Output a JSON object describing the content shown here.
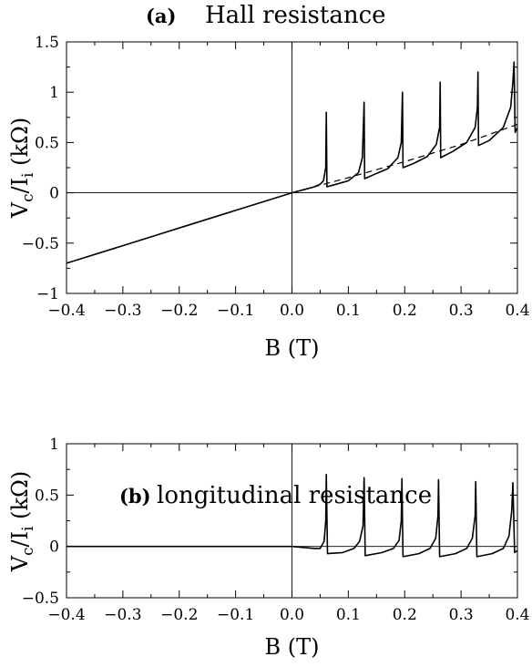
{
  "chart_data": [
    {
      "type": "line",
      "panel_label": "(a)",
      "title": "Hall resistance",
      "xlabel": "B (T)",
      "ylabel_main": "V",
      "ylabel_sub1": "c",
      "ylabel_mid": "/I",
      "ylabel_sub2": "i",
      "ylabel_unit": " (kΩ)",
      "xlim": [
        -0.4,
        0.4
      ],
      "ylim": [
        -1,
        1.5
      ],
      "xticks": [
        -0.4,
        -0.3,
        -0.2,
        -0.1,
        0.0,
        0.1,
        0.2,
        0.3,
        0.4
      ],
      "xtick_labels": [
        "−0.4",
        "−0.3",
        "−0.2",
        "−0.1",
        "0.0",
        "0.1",
        "0.2",
        "0.3",
        "0.4"
      ],
      "yticks": [
        -1,
        -0.5,
        0,
        0.5,
        1,
        1.5
      ],
      "ytick_labels": [
        "−1",
        "−0.5",
        "0",
        "0.5",
        "1",
        "1.5"
      ],
      "grid": false,
      "reference_lines": {
        "x0": true,
        "y0": true
      },
      "series": [
        {
          "style": "solid",
          "points": [
            [
              -0.4,
              -0.7
            ],
            [
              -0.3,
              -0.525
            ],
            [
              -0.2,
              -0.35
            ],
            [
              -0.1,
              -0.175
            ],
            [
              0.0,
              0.0
            ],
            [
              0.02,
              0.03
            ],
            [
              0.04,
              0.06
            ],
            [
              0.05,
              0.085
            ],
            [
              0.056,
              0.12
            ],
            [
              0.06,
              0.25
            ],
            [
              0.061,
              0.8
            ],
            [
              0.062,
              0.06
            ],
            [
              0.075,
              0.08
            ],
            [
              0.1,
              0.12
            ],
            [
              0.118,
              0.2
            ],
            [
              0.125,
              0.35
            ],
            [
              0.128,
              0.9
            ],
            [
              0.129,
              0.14
            ],
            [
              0.145,
              0.18
            ],
            [
              0.17,
              0.24
            ],
            [
              0.188,
              0.35
            ],
            [
              0.194,
              0.5
            ],
            [
              0.196,
              1.0
            ],
            [
              0.197,
              0.25
            ],
            [
              0.215,
              0.29
            ],
            [
              0.24,
              0.36
            ],
            [
              0.256,
              0.48
            ],
            [
              0.262,
              0.65
            ],
            [
              0.263,
              1.1
            ],
            [
              0.264,
              0.35
            ],
            [
              0.285,
              0.41
            ],
            [
              0.31,
              0.5
            ],
            [
              0.325,
              0.65
            ],
            [
              0.329,
              0.85
            ],
            [
              0.33,
              1.2
            ],
            [
              0.331,
              0.47
            ],
            [
              0.35,
              0.52
            ],
            [
              0.375,
              0.65
            ],
            [
              0.388,
              0.85
            ],
            [
              0.392,
              1.1
            ],
            [
              0.394,
              1.3
            ],
            [
              0.396,
              0.6
            ],
            [
              0.4,
              0.65
            ]
          ]
        },
        {
          "style": "dashed",
          "points": [
            [
              0.0,
              0.0
            ],
            [
              0.1,
              0.15
            ],
            [
              0.2,
              0.31
            ],
            [
              0.3,
              0.48
            ],
            [
              0.4,
              0.68
            ]
          ]
        }
      ]
    },
    {
      "type": "line",
      "panel_label": "(b)",
      "title": "longitudinal resistance",
      "xlabel": "B (T)",
      "ylabel_main": "V",
      "ylabel_sub1": "c",
      "ylabel_mid": "/I",
      "ylabel_sub2": "i",
      "ylabel_unit": " (kΩ)",
      "xlim": [
        -0.4,
        0.4
      ],
      "ylim": [
        -0.5,
        1
      ],
      "xticks": [
        -0.4,
        -0.3,
        -0.2,
        -0.1,
        0.0,
        0.1,
        0.2,
        0.3,
        0.4
      ],
      "xtick_labels": [
        "−0.4",
        "−0.3",
        "−0.2",
        "−0.1",
        "0.0",
        "0.1",
        "0.2",
        "0.3",
        "0.4"
      ],
      "yticks": [
        -0.5,
        0,
        0.5,
        1
      ],
      "ytick_labels": [
        "−0.5",
        "0",
        "0.5",
        "1"
      ],
      "grid": false,
      "reference_lines": {
        "x0": true,
        "y0": true
      },
      "series": [
        {
          "style": "solid",
          "points": [
            [
              -0.4,
              0.0
            ],
            [
              0.0,
              0.0
            ],
            [
              0.02,
              -0.01
            ],
            [
              0.04,
              -0.02
            ],
            [
              0.05,
              -0.02
            ],
            [
              0.057,
              0.05
            ],
            [
              0.06,
              0.25
            ],
            [
              0.061,
              0.7
            ],
            [
              0.063,
              -0.07
            ],
            [
              0.09,
              -0.06
            ],
            [
              0.11,
              -0.02
            ],
            [
              0.12,
              0.05
            ],
            [
              0.126,
              0.2
            ],
            [
              0.128,
              0.67
            ],
            [
              0.13,
              -0.09
            ],
            [
              0.16,
              -0.06
            ],
            [
              0.18,
              -0.02
            ],
            [
              0.19,
              0.06
            ],
            [
              0.194,
              0.25
            ],
            [
              0.195,
              0.66
            ],
            [
              0.197,
              -0.1
            ],
            [
              0.225,
              -0.07
            ],
            [
              0.245,
              -0.02
            ],
            [
              0.255,
              0.08
            ],
            [
              0.259,
              0.3
            ],
            [
              0.26,
              0.65
            ],
            [
              0.262,
              -0.1
            ],
            [
              0.29,
              -0.07
            ],
            [
              0.31,
              -0.02
            ],
            [
              0.32,
              0.08
            ],
            [
              0.325,
              0.3
            ],
            [
              0.326,
              0.63
            ],
            [
              0.328,
              -0.1
            ],
            [
              0.355,
              -0.07
            ],
            [
              0.375,
              -0.02
            ],
            [
              0.385,
              0.1
            ],
            [
              0.39,
              0.35
            ],
            [
              0.392,
              0.62
            ],
            [
              0.395,
              -0.06
            ],
            [
              0.4,
              -0.04
            ]
          ]
        }
      ]
    }
  ]
}
